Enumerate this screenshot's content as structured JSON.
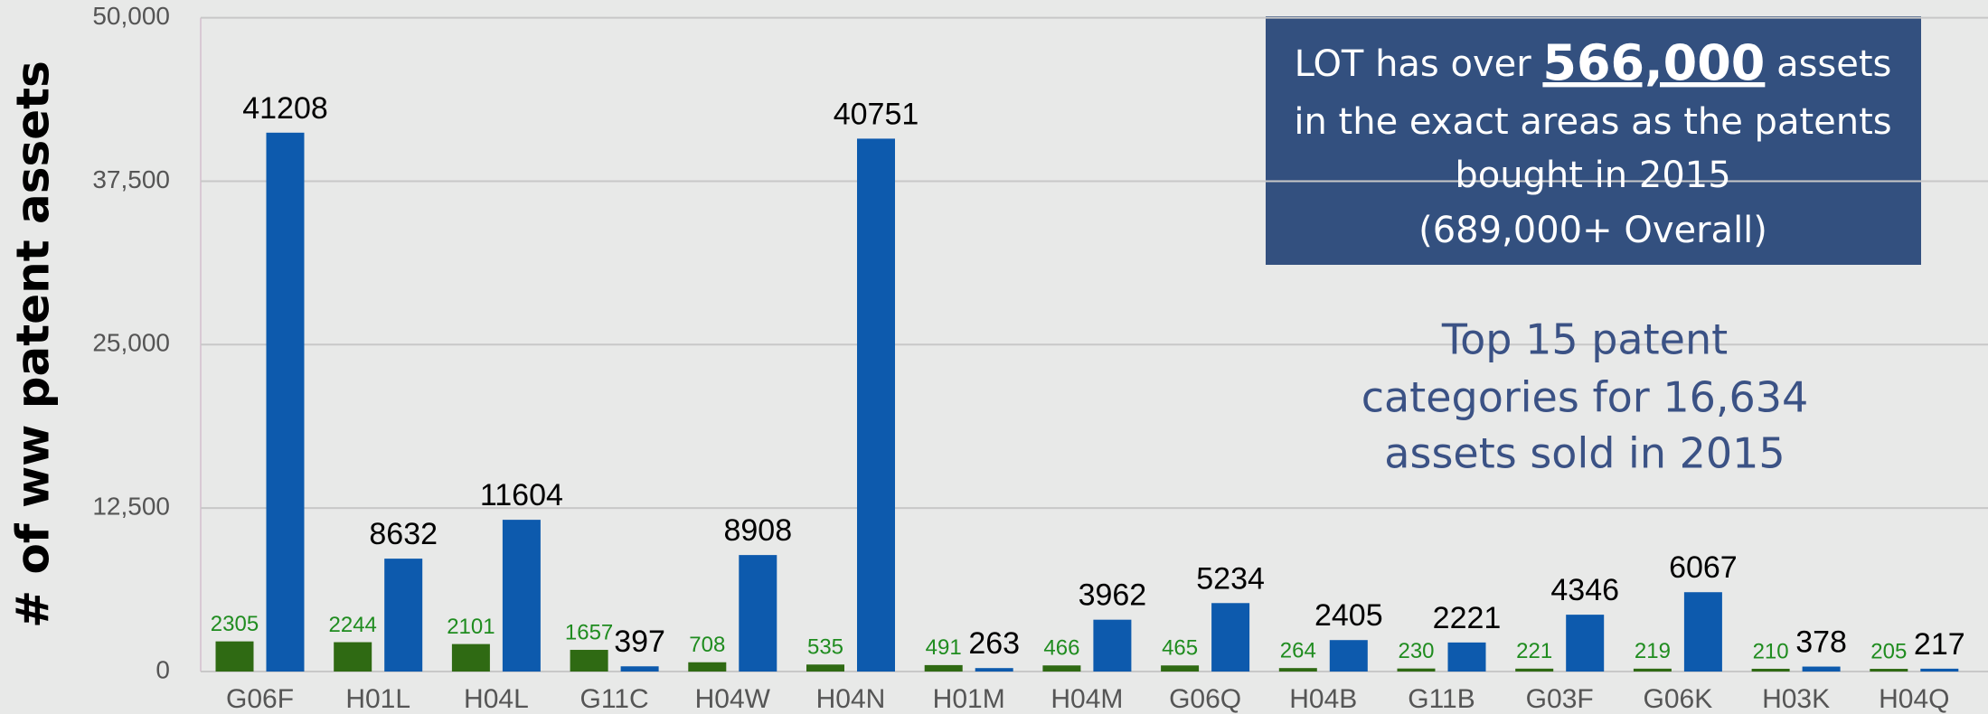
{
  "chart_data": {
    "type": "bar",
    "y_label": "# of ww patent assets",
    "categories": [
      "G06F",
      "H01L",
      "H04L",
      "G11C",
      "H04W",
      "H04N",
      "H01M",
      "H04M",
      "G06Q",
      "H04B",
      "G11B",
      "G03F",
      "G06K",
      "H03K",
      "H04Q"
    ],
    "series": [
      {
        "color": "#2f6a13",
        "label_color": "#1f8c1f",
        "values": [
          2305,
          2244,
          2101,
          1657,
          708,
          535,
          491,
          466,
          465,
          264,
          230,
          221,
          219,
          210,
          205
        ]
      },
      {
        "color": "#0d5aad",
        "label_color": "#000000",
        "values": [
          41208,
          8632,
          11604,
          397,
          8908,
          40751,
          263,
          3962,
          5234,
          2405,
          2221,
          4346,
          6067,
          378,
          217
        ]
      }
    ],
    "ylim": [
      0,
      50000
    ],
    "yticks": [
      0,
      {
        "value": 12500,
        "label": "12,500"
      },
      {
        "value": 25000,
        "label": "25,000"
      },
      {
        "value": 37500,
        "label": "37,500"
      },
      {
        "value": 50000,
        "label": "50,000"
      }
    ],
    "grid": true,
    "box_lines": [
      [
        "LOT has over ",
        "566,000",
        " assets"
      ],
      "in the exact areas as the patents",
      "bought in 2015",
      "(689,000+ Overall)"
    ],
    "note_lines": [
      "Top 15 patent",
      "categories for 16,634",
      "assets sold in 2015"
    ]
  }
}
